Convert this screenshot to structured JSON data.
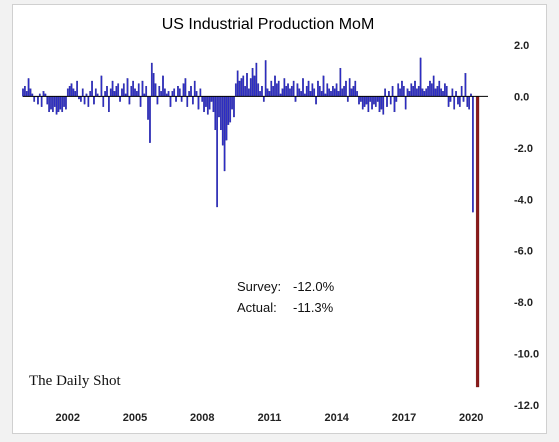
{
  "chart_data": {
    "type": "bar",
    "title": "US Industrial Production MoM",
    "xlabel": "",
    "ylabel": "",
    "ylim": [
      -12.0,
      2.0
    ],
    "yticks": [
      "2.0",
      "0.0",
      "-2.0",
      "-4.0",
      "-6.0",
      "-8.0",
      "-10.0",
      "-12.0"
    ],
    "ytick_values": [
      2,
      0,
      -2,
      -4,
      -6,
      -8,
      -10,
      -12
    ],
    "xticks": [
      "2002",
      "2005",
      "2008",
      "2011",
      "2014",
      "2017",
      "2020"
    ],
    "xtick_values": [
      2002,
      2005,
      2008,
      2011,
      2014,
      2017,
      2020
    ],
    "xrange": [
      2000.0,
      2020.75
    ],
    "grid": false,
    "axis_position": "right",
    "series": [
      {
        "start": 2000.0,
        "step": 0.0833,
        "color": "#2e2ec8",
        "values": [
          0.3,
          0.4,
          0.2,
          0.7,
          0.3,
          0.1,
          -0.2,
          0.0,
          -0.3,
          0.1,
          -0.4,
          0.2,
          0.1,
          -0.3,
          -0.6,
          -0.5,
          -0.6,
          -0.4,
          -0.7,
          -0.6,
          -0.5,
          -0.6,
          -0.4,
          -0.5,
          0.3,
          0.4,
          0.5,
          0.3,
          0.2,
          0.6,
          -0.1,
          -0.2,
          0.3,
          -0.3,
          0.1,
          -0.4,
          0.2,
          0.6,
          -0.3,
          0.3,
          0.1,
          0.0,
          0.8,
          -0.4,
          0.2,
          0.4,
          -0.6,
          0.3,
          0.6,
          0.2,
          0.4,
          0.5,
          -0.2,
          0.3,
          0.5,
          0.1,
          0.7,
          -0.3,
          0.4,
          0.6,
          0.3,
          0.2,
          0.5,
          -0.4,
          0.6,
          0.1,
          0.4,
          -0.9,
          -1.8,
          1.3,
          0.9,
          0.5,
          -0.3,
          0.4,
          0.2,
          0.8,
          0.3,
          0.1,
          0.2,
          -0.4,
          0.2,
          0.3,
          -0.2,
          0.4,
          0.3,
          -0.2,
          0.5,
          0.7,
          -0.4,
          0.2,
          0.4,
          -0.3,
          0.6,
          0.2,
          -0.5,
          0.3,
          -0.2,
          -0.6,
          -0.4,
          -0.7,
          -0.5,
          -0.2,
          -0.6,
          -1.3,
          -4.3,
          -0.8,
          -1.3,
          -1.9,
          -2.9,
          -1.7,
          -1.1,
          -1.0,
          -0.5,
          -0.8,
          0.5,
          1.0,
          0.6,
          0.7,
          0.8,
          0.4,
          0.9,
          0.3,
          0.7,
          1.1,
          0.8,
          1.3,
          0.5,
          0.2,
          0.4,
          -0.2,
          1.4,
          0.3,
          0.2,
          0.6,
          0.4,
          0.8,
          0.5,
          0.6,
          0.1,
          0.3,
          0.7,
          0.4,
          0.5,
          0.3,
          0.4,
          0.6,
          -0.2,
          0.5,
          0.3,
          0.2,
          0.7,
          0.1,
          0.4,
          0.6,
          0.2,
          0.5,
          0.3,
          -0.3,
          0.6,
          0.4,
          0.2,
          0.8,
          0.1,
          0.5,
          0.3,
          0.2,
          0.4,
          0.3,
          0.5,
          0.2,
          1.1,
          0.3,
          0.4,
          0.6,
          -0.2,
          0.7,
          0.3,
          0.4,
          0.6,
          0.2,
          -0.3,
          -0.2,
          -0.5,
          -0.4,
          -0.3,
          -0.6,
          -0.2,
          -0.5,
          -0.3,
          -0.4,
          -0.2,
          -0.6,
          -0.5,
          -0.7,
          0.3,
          -0.4,
          0.2,
          -0.3,
          0.4,
          -0.6,
          -0.2,
          0.5,
          0.3,
          0.6,
          0.4,
          -0.5,
          0.3,
          0.2,
          0.5,
          0.4,
          0.6,
          0.3,
          0.4,
          1.5,
          0.3,
          0.2,
          0.3,
          0.4,
          0.6,
          0.5,
          0.8,
          0.3,
          0.4,
          0.6,
          0.3,
          0.2,
          0.5,
          0.4,
          -0.4,
          -0.2,
          0.3,
          -0.5,
          0.2,
          -0.3,
          -0.4,
          0.4,
          -0.2,
          0.9,
          -0.4,
          -0.5,
          0.1,
          -4.5
        ]
      },
      {
        "start": 2020.25,
        "step": 0.0833,
        "color": "#8b1a1a",
        "values": [
          -11.3
        ]
      }
    ],
    "annotations": [
      {
        "label": "Survey:",
        "value": "-12.0%"
      },
      {
        "label": "Actual:",
        "value": "-11.3%"
      }
    ],
    "watermark": "The Daily Shot"
  }
}
